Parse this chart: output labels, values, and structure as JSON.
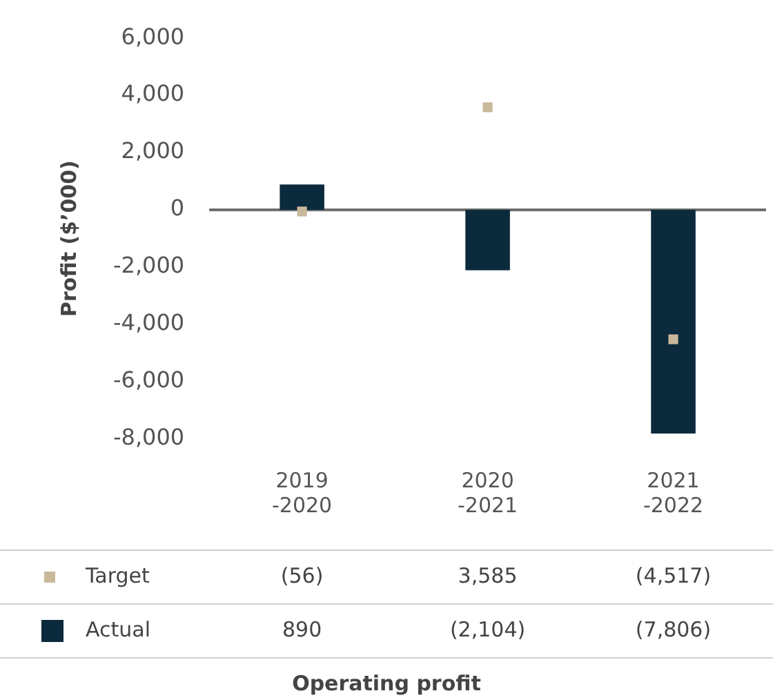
{
  "chart_data": {
    "type": "bar",
    "ylabel": "Profit ($’000)",
    "categories": [
      "2019\n-2020",
      "2020\n-2021",
      "2021\n-2022"
    ],
    "series": [
      {
        "name": "Target",
        "type": "scatter",
        "color": "#c9b99b",
        "marker": "square",
        "values": [
          -56,
          3585,
          -4517
        ],
        "value_labels": [
          "(56)",
          "3,585",
          "(4,517)"
        ]
      },
      {
        "name": "Actual",
        "color": "#0b2b3c",
        "values": [
          890,
          -2104,
          -7806
        ],
        "value_labels": [
          "890",
          "(2,104)",
          "(7,806)"
        ]
      }
    ],
    "ylim": [
      -8000,
      6000
    ],
    "yticks": [
      {
        "value": -8000,
        "label": "-8,000"
      },
      {
        "value": -6000,
        "label": "-6,000"
      },
      {
        "value": -4000,
        "label": "-4,000"
      },
      {
        "value": -2000,
        "label": "-2,000"
      },
      0,
      {
        "value": 2000,
        "label": "2,000"
      },
      {
        "value": 4000,
        "label": "4,000"
      },
      {
        "value": 6000,
        "label": "6,000"
      }
    ],
    "legend": "bottom",
    "ref_lines": [
      {
        "axis": "y",
        "value": 0,
        "color": "#6e6e6e"
      }
    ],
    "annotations": [
      "Operating profit"
    ]
  }
}
